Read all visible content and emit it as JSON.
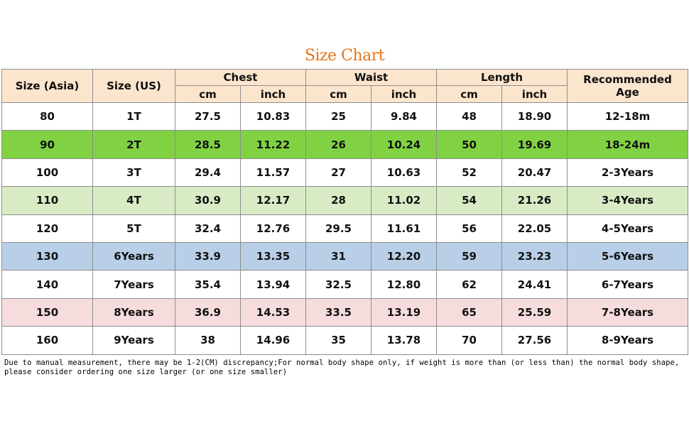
{
  "title": "Size Chart",
  "header": {
    "size_asia": "Size  (Asia)",
    "size_us": "Size (US)",
    "chest": "Chest",
    "waist": "Waist",
    "length": "Length",
    "recommended_age": "Recommended Age",
    "cm": "cm",
    "inch": "inch"
  },
  "rows": [
    {
      "asia": "80",
      "us": "1T",
      "chest_cm": "27.5",
      "chest_in": "10.83",
      "waist_cm": "25",
      "waist_in": "9.84",
      "length_cm": "48",
      "length_in": "18.90",
      "age": "12-18m",
      "color": "#ffffff"
    },
    {
      "asia": "90",
      "us": "2T",
      "chest_cm": "28.5",
      "chest_in": "11.22",
      "waist_cm": "26",
      "waist_in": "10.24",
      "length_cm": "50",
      "length_in": "19.69",
      "age": "18-24m",
      "color": "#80d243"
    },
    {
      "asia": "100",
      "us": "3T",
      "chest_cm": "29.4",
      "chest_in": "11.57",
      "waist_cm": "27",
      "waist_in": "10.63",
      "length_cm": "52",
      "length_in": "20.47",
      "age": "2-3Years",
      "color": "#ffffff"
    },
    {
      "asia": "110",
      "us": "4T",
      "chest_cm": "30.9",
      "chest_in": "12.17",
      "waist_cm": "28",
      "waist_in": "11.02",
      "length_cm": "54",
      "length_in": "21.26",
      "age": "3-4Years",
      "color": "#d8ebc5"
    },
    {
      "asia": "120",
      "us": "5T",
      "chest_cm": "32.4",
      "chest_in": "12.76",
      "waist_cm": "29.5",
      "waist_in": "11.61",
      "length_cm": "56",
      "length_in": "22.05",
      "age": "4-5Years",
      "color": "#ffffff"
    },
    {
      "asia": "130",
      "us": "6Years",
      "chest_cm": "33.9",
      "chest_in": "13.35",
      "waist_cm": "31",
      "waist_in": "12.20",
      "length_cm": "59",
      "length_in": "23.23",
      "age": "5-6Years",
      "color": "#b9cfe8"
    },
    {
      "asia": "140",
      "us": "7Years",
      "chest_cm": "35.4",
      "chest_in": "13.94",
      "waist_cm": "32.5",
      "waist_in": "12.80",
      "length_cm": "62",
      "length_in": "24.41",
      "age": "6-7Years",
      "color": "#ffffff"
    },
    {
      "asia": "150",
      "us": "8Years",
      "chest_cm": "36.9",
      "chest_in": "14.53",
      "waist_cm": "33.5",
      "waist_in": "13.19",
      "length_cm": "65",
      "length_in": "25.59",
      "age": "7-8Years",
      "color": "#f6dcdc"
    },
    {
      "asia": "160",
      "us": "9Years",
      "chest_cm": "38",
      "chest_in": "14.96",
      "waist_cm": "35",
      "waist_in": "13.78",
      "length_cm": "70",
      "length_in": "27.56",
      "age": "8-9Years",
      "color": "#ffffff"
    }
  ],
  "note": "Due to manual measurement, there may be 1-2(CM) discrepancy;For normal body shape only, if weight is more than (or less than) the normal body shape, please consider ordering one size larger (or one size smaller)",
  "colors": {
    "title": "#e2741c",
    "header_bg": "#fce5cd",
    "border": "#8e8e8e"
  }
}
